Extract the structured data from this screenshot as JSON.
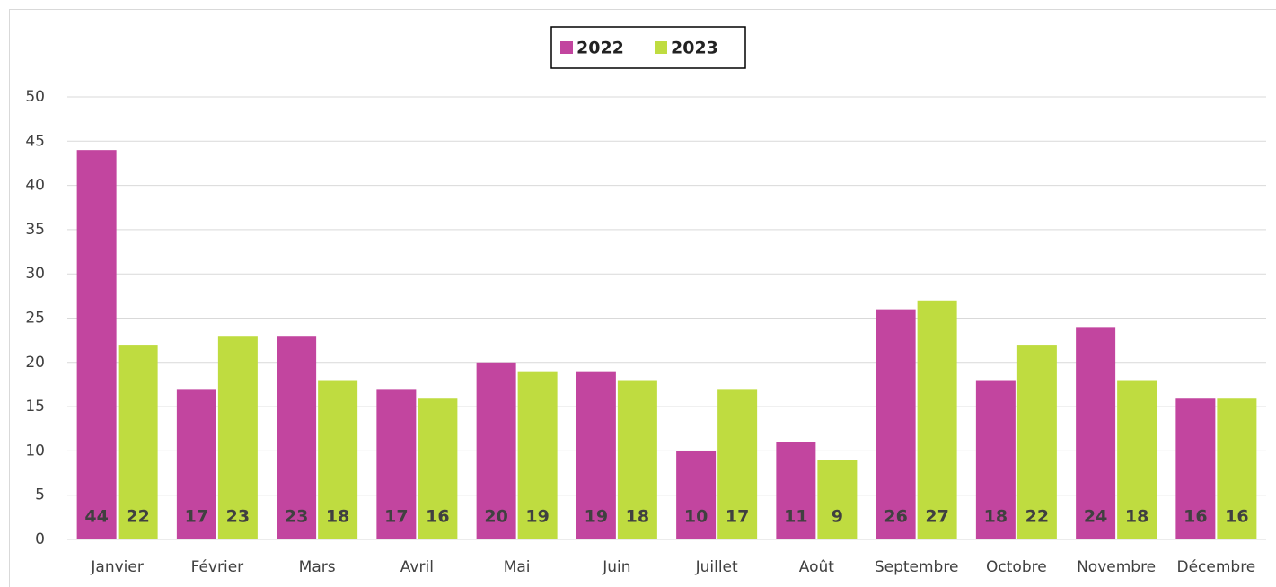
{
  "chart_data": {
    "type": "bar",
    "categories": [
      "Janvier",
      "Février",
      "Mars",
      "Avril",
      "Mai",
      "Juin",
      "Juillet",
      "Août",
      "Septembre",
      "Octobre",
      "Novembre",
      "Décembre"
    ],
    "series": [
      {
        "name": "2022",
        "color": "#c2459f",
        "values": [
          44,
          17,
          23,
          17,
          20,
          19,
          10,
          11,
          26,
          18,
          24,
          16
        ]
      },
      {
        "name": "2023",
        "color": "#bfdc40",
        "values": [
          22,
          23,
          18,
          16,
          19,
          18,
          17,
          9,
          27,
          22,
          18,
          16
        ]
      }
    ],
    "ylim": [
      0,
      50
    ],
    "yticks": [
      0,
      5,
      10,
      15,
      20,
      25,
      30,
      35,
      40,
      45,
      50
    ],
    "grid": true,
    "legend": "top"
  }
}
